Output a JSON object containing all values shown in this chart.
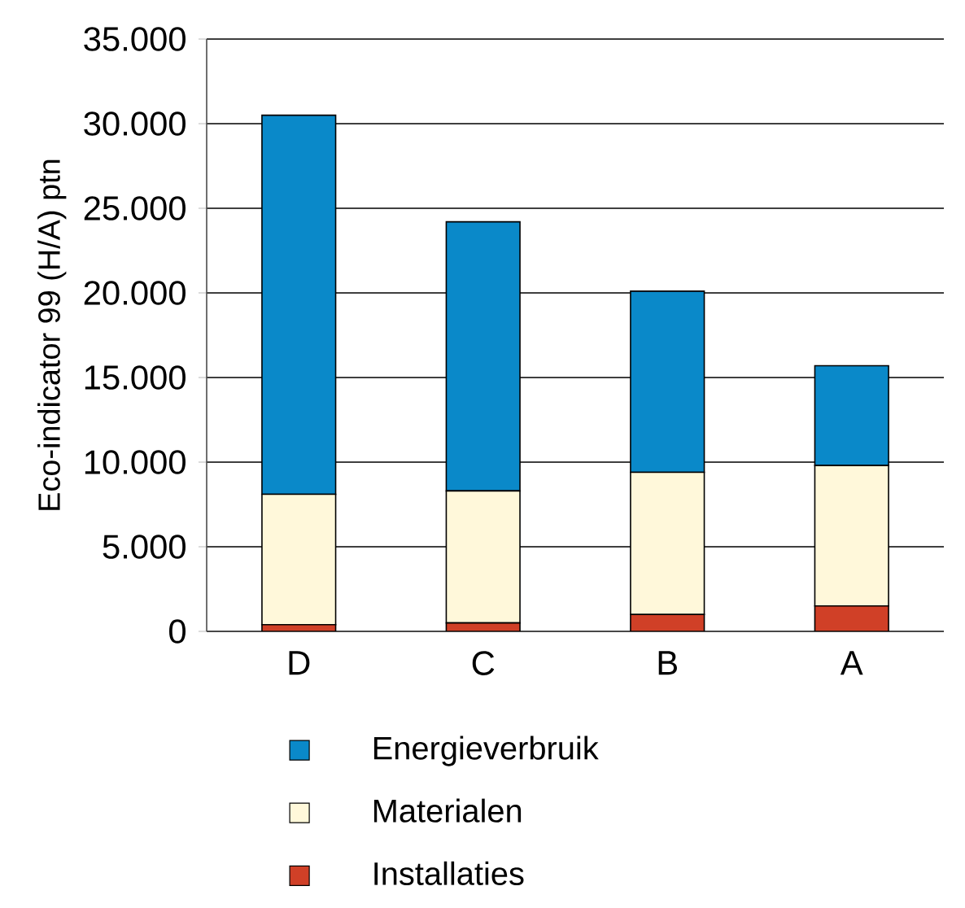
{
  "chart_data": {
    "type": "bar",
    "stacked": true,
    "ylabel": "Eco-indicator 99 (H/A) ptn",
    "categories": [
      "D",
      "C",
      "B",
      "A"
    ],
    "series": [
      {
        "name": "Installaties",
        "color": "#d04027",
        "values": [
          400,
          500,
          1000,
          1500
        ]
      },
      {
        "name": "Materialen",
        "color": "#fff8da",
        "values": [
          7700,
          7800,
          8400,
          8300
        ]
      },
      {
        "name": "Energieverbruik",
        "color": "#0a89c9",
        "values": [
          22400,
          15900,
          10700,
          5900
        ]
      }
    ],
    "ylim": [
      0,
      35000
    ],
    "yticks": [
      0,
      {
        "value": 5000,
        "label": "5.000"
      },
      {
        "value": 10000,
        "label": "10.000"
      },
      {
        "value": 15000,
        "label": "15.000"
      },
      {
        "value": 20000,
        "label": "20.000"
      },
      {
        "value": 25000,
        "label": "25.000"
      },
      {
        "value": 30000,
        "label": "30.000"
      },
      {
        "value": 35000,
        "label": "35.000"
      }
    ],
    "grid": "y",
    "legend": "bottom"
  }
}
